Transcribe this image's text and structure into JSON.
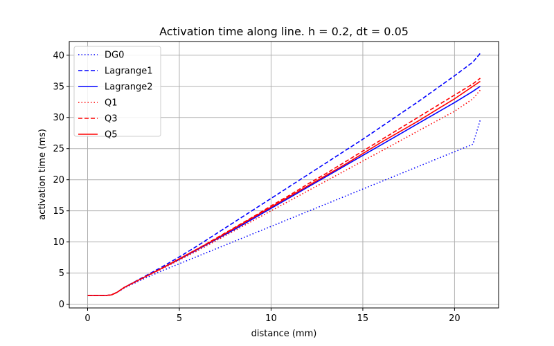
{
  "chart_data": {
    "type": "line",
    "title": "Activation time along line. h = 0.2, dt = 0.05",
    "xlabel": "distance (mm)",
    "ylabel": "activation time (ms)",
    "xlim": [
      -1.0,
      22.4
    ],
    "ylim": [
      -0.6,
      42.2
    ],
    "xticks": [
      0,
      5,
      10,
      15,
      20
    ],
    "yticks": [
      0,
      5,
      10,
      15,
      20,
      25,
      30,
      35,
      40
    ],
    "grid": true,
    "legend_position": "upper-left",
    "series": [
      {
        "name": "DG0",
        "color": "#0000ff",
        "dash": "dotted",
        "x": [
          0,
          0.5,
          1.0,
          1.3,
          1.6,
          2.0,
          3.0,
          4.0,
          5.0,
          6.0,
          7.0,
          8.0,
          9.0,
          10.0,
          11.0,
          12.0,
          13.0,
          14.0,
          15.0,
          16.0,
          17.0,
          18.0,
          19.0,
          20.0,
          21.0,
          21.4
        ],
        "y": [
          1.4,
          1.4,
          1.4,
          1.5,
          1.9,
          2.6,
          4.0,
          5.3,
          6.5,
          7.7,
          8.9,
          10.1,
          11.3,
          12.5,
          13.7,
          14.9,
          16.1,
          17.3,
          18.5,
          19.7,
          20.9,
          22.1,
          23.3,
          24.5,
          25.7,
          29.6
        ]
      },
      {
        "name": "Lagrange1",
        "color": "#0000ff",
        "dash": "dashed",
        "x": [
          0,
          0.5,
          1.0,
          1.3,
          1.6,
          2.0,
          3.0,
          4.0,
          5.0,
          6.0,
          7.0,
          8.0,
          9.0,
          10.0,
          11.0,
          12.0,
          13.0,
          14.0,
          15.0,
          16.0,
          17.0,
          18.0,
          19.0,
          20.0,
          21.0,
          21.4
        ],
        "y": [
          1.4,
          1.4,
          1.4,
          1.5,
          1.9,
          2.7,
          4.3,
          5.9,
          7.6,
          9.4,
          11.3,
          13.2,
          15.1,
          17.0,
          18.9,
          20.8,
          22.7,
          24.6,
          26.5,
          28.5,
          30.5,
          32.5,
          34.6,
          36.7,
          38.9,
          40.3
        ]
      },
      {
        "name": "Lagrange2",
        "color": "#0000ff",
        "dash": "solid",
        "x": [
          0,
          0.5,
          1.0,
          1.3,
          1.6,
          2.0,
          3.0,
          4.0,
          5.0,
          6.0,
          7.0,
          8.0,
          9.0,
          10.0,
          11.0,
          12.0,
          13.0,
          14.0,
          15.0,
          16.0,
          17.0,
          18.0,
          19.0,
          20.0,
          21.0,
          21.4
        ],
        "y": [
          1.4,
          1.4,
          1.4,
          1.5,
          1.9,
          2.7,
          4.2,
          5.7,
          7.2,
          8.8,
          10.4,
          12.0,
          13.7,
          15.4,
          17.1,
          18.8,
          20.5,
          22.2,
          23.9,
          25.6,
          27.3,
          29.0,
          30.7,
          32.4,
          34.2,
          35.0
        ]
      },
      {
        "name": "Q1",
        "color": "#ff0000",
        "dash": "dotted",
        "x": [
          0,
          0.5,
          1.0,
          1.3,
          1.6,
          2.0,
          3.0,
          4.0,
          5.0,
          6.0,
          7.0,
          8.0,
          9.0,
          10.0,
          11.0,
          12.0,
          13.0,
          14.0,
          15.0,
          16.0,
          17.0,
          18.0,
          19.0,
          20.0,
          21.0,
          21.4
        ],
        "y": [
          1.4,
          1.4,
          1.4,
          1.5,
          1.9,
          2.7,
          4.2,
          5.6,
          7.1,
          8.6,
          10.2,
          11.8,
          13.4,
          15.0,
          16.6,
          18.2,
          19.8,
          21.4,
          23.0,
          24.6,
          26.2,
          27.8,
          29.4,
          31.0,
          33.0,
          34.4
        ]
      },
      {
        "name": "Q3",
        "color": "#ff0000",
        "dash": "dashed",
        "x": [
          0,
          0.5,
          1.0,
          1.3,
          1.6,
          2.0,
          3.0,
          4.0,
          5.0,
          6.0,
          7.0,
          8.0,
          9.0,
          10.0,
          11.0,
          12.0,
          13.0,
          14.0,
          15.0,
          16.0,
          17.0,
          18.0,
          19.0,
          20.0,
          21.0,
          21.4
        ],
        "y": [
          1.4,
          1.4,
          1.4,
          1.5,
          1.9,
          2.7,
          4.2,
          5.7,
          7.3,
          8.9,
          10.6,
          12.3,
          14.0,
          15.8,
          17.5,
          19.3,
          21.0,
          22.8,
          24.6,
          26.4,
          28.2,
          30.0,
          31.8,
          33.6,
          35.4,
          36.3
        ]
      },
      {
        "name": "Q5",
        "color": "#ff0000",
        "dash": "solid",
        "x": [
          0,
          0.5,
          1.0,
          1.3,
          1.6,
          2.0,
          3.0,
          4.0,
          5.0,
          6.0,
          7.0,
          8.0,
          9.0,
          10.0,
          11.0,
          12.0,
          13.0,
          14.0,
          15.0,
          16.0,
          17.0,
          18.0,
          19.0,
          20.0,
          21.0,
          21.4
        ],
        "y": [
          1.4,
          1.4,
          1.4,
          1.5,
          1.9,
          2.7,
          4.2,
          5.7,
          7.3,
          8.9,
          10.5,
          12.2,
          13.9,
          15.6,
          17.3,
          19.0,
          20.7,
          22.4,
          24.2,
          26.0,
          27.7,
          29.4,
          31.2,
          33.0,
          35.0,
          35.8
        ]
      }
    ]
  }
}
